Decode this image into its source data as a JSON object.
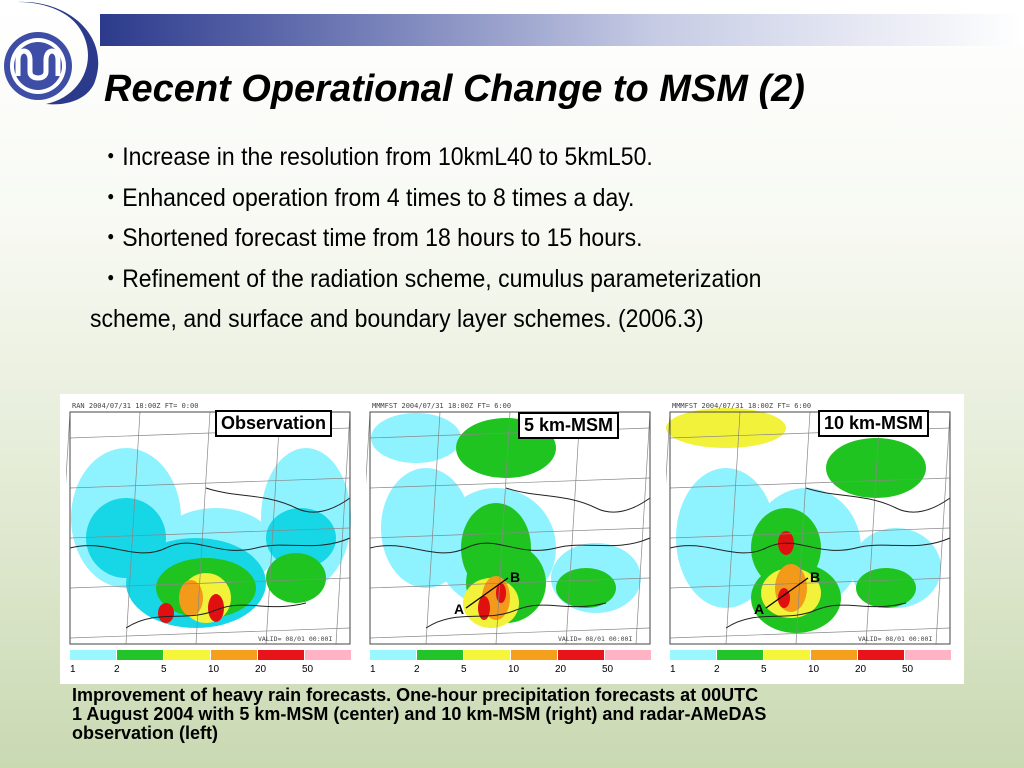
{
  "slide": {
    "title": "Recent Operational Change to MSM (2)",
    "bullets": [
      "・Increase in the resolution from 10kmL40 to 5kmL50.",
      "・Enhanced operation from 4 times to 8 times a day.",
      "・Shortened forecast time from 18 hours to 15 hours.",
      "・Refinement of the radiation scheme, cumulus parameterization scheme, and surface and boundary layer schemes. (2006.3)"
    ],
    "caption": [
      "Improvement of heavy rain forecasts. One-hour precipitation forecasts at 00UTC",
      "1 August 2004 with 5 km-MSM (center) and 10 km-MSM (right) and radar-AMeDAS",
      "observation (left)"
    ]
  },
  "figure": {
    "panels": [
      {
        "label": "Observation",
        "header": "RAN  2004/07/31 18:00Z FT=  0:00"
      },
      {
        "label": "5 km-MSM",
        "header": "MMMFST 2004/07/31 18:00Z FT=  6:00"
      },
      {
        "label": "10 km-MSM",
        "header": "MMMFST 2004/07/31 18:00Z FT=  6:00"
      }
    ],
    "valid_text": "VALID= 08/01 00:00I",
    "legend_labels": [
      "1",
      "2",
      "5",
      "10",
      "20",
      "50"
    ],
    "legend_colors": [
      "#9af7ff",
      "#22c42a",
      "#f5f53a",
      "#f4a01c",
      "#e8141a",
      "#ffb3c4"
    ],
    "section_points": [
      "A",
      "B"
    ],
    "rain_colors": {
      "light": "#8ff2ff",
      "cyan": "#17d6e6",
      "green": "#20c420",
      "yellow": "#f2f23a",
      "orange": "#f49a1a",
      "red": "#e01010"
    }
  }
}
